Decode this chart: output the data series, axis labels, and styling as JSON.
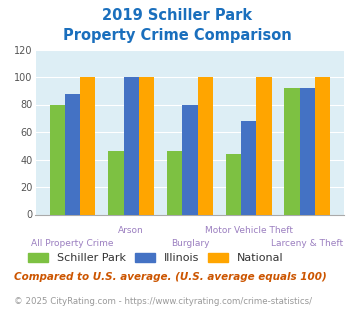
{
  "title_line1": "2019 Schiller Park",
  "title_line2": "Property Crime Comparison",
  "categories": [
    "All Property Crime",
    "Arson",
    "Burglary",
    "Motor Vehicle Theft",
    "Larceny & Theft"
  ],
  "schiller_park": [
    80,
    46,
    46,
    44,
    92
  ],
  "illinois": [
    88,
    100,
    80,
    68,
    92
  ],
  "national": [
    100,
    100,
    100,
    100,
    100
  ],
  "colors": {
    "schiller_park": "#7dc142",
    "illinois": "#4472c4",
    "national": "#ffa500"
  },
  "ylim": [
    0,
    120
  ],
  "yticks": [
    0,
    20,
    40,
    60,
    80,
    100,
    120
  ],
  "title_color": "#1a6fbd",
  "xlabel_color_top": "#9b7fc0",
  "xlabel_color_bot": "#9b7fc0",
  "legend_labels": [
    "Schiller Park",
    "Illinois",
    "National"
  ],
  "footnote1": "Compared to U.S. average. (U.S. average equals 100)",
  "footnote2": "© 2025 CityRating.com - https://www.cityrating.com/crime-statistics/",
  "footnote1_color": "#cc5500",
  "footnote2_color": "#999999",
  "bg_color": "#ffffff",
  "plot_bg_color": "#ddeef5",
  "label_top": [
    false,
    true,
    false,
    true,
    false
  ]
}
